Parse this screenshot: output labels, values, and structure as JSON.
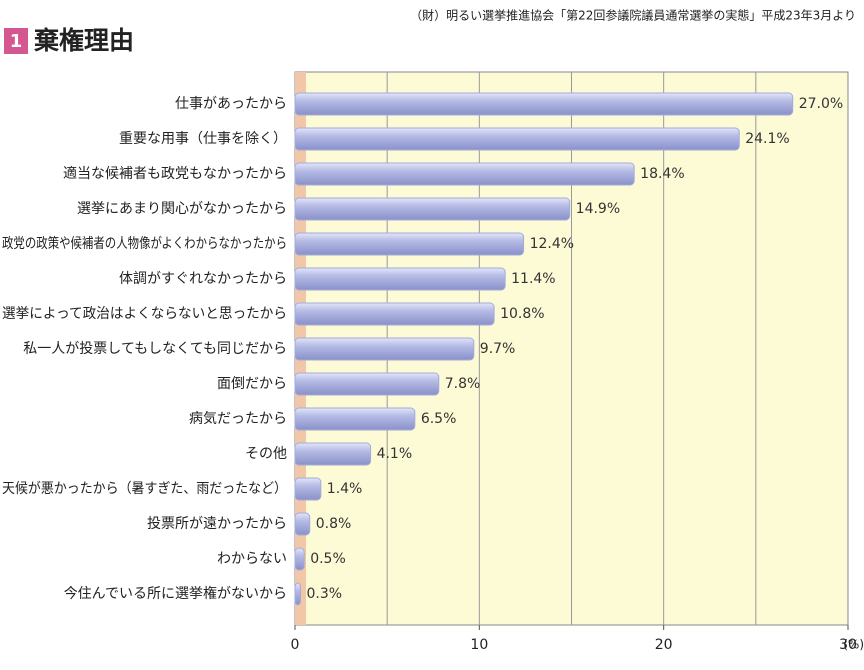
{
  "source": "（財）明るい選挙推進協会「第22回参議院議員通常選挙の実態」平成23年3月より",
  "badge": "1",
  "chart_data": {
    "type": "bar",
    "orientation": "horizontal",
    "title": "棄権理由",
    "categories": [
      "仕事があったから",
      "重要な用事（仕事を除く）",
      "適当な候補者も政党もなかったから",
      "選挙にあまり関心がなかったから",
      "政党の政策や候補者の人物像がよくわからなかったから",
      "体調がすぐれなかったから",
      "選挙によって政治はよくならないと思ったから",
      "私一人が投票してもしなくても同じだから",
      "面倒だから",
      "病気だったから",
      "その他",
      "天候が悪かったから（暑すぎた、雨だったなど）",
      "投票所が遠かったから",
      "わからない",
      "今住んでいる所に選挙権がないから"
    ],
    "values": [
      27.0,
      24.1,
      18.4,
      14.9,
      12.4,
      11.4,
      10.8,
      9.7,
      7.8,
      6.5,
      4.1,
      1.4,
      0.8,
      0.5,
      0.3
    ],
    "value_labels": [
      "27.0%",
      "24.1%",
      "18.4%",
      "14.9%",
      "12.4%",
      "11.4%",
      "10.8%",
      "9.7%",
      "7.8%",
      "6.5%",
      "4.1%",
      "1.4%",
      "0.8%",
      "0.5%",
      "0.3%"
    ],
    "color": "#a4abdc",
    "xlim": [
      0,
      30
    ],
    "xticks": [
      0,
      10,
      20,
      30
    ],
    "x_unit": "(%)",
    "grid": true,
    "grid_step": 5
  }
}
